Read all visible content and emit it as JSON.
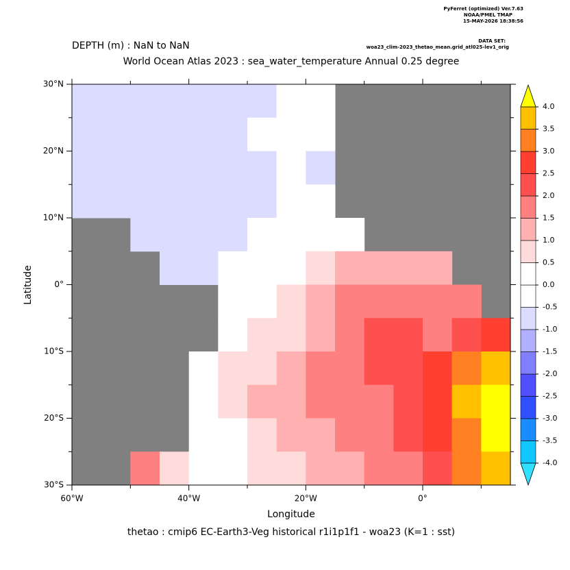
{
  "header": {
    "software": "PyFerret (optimized) Ver.7.63",
    "lab": "NOAA/PMEL TMAP",
    "timestamp": "15-MAY-2026 18:38:56",
    "dataset_label": "DATA SET:",
    "dataset": "woa23_clim-2023_thetao_mean.grid_atl025-lev1_orig"
  },
  "chart_data": {
    "type": "heatmap",
    "depth": "DEPTH (m) : NaN to NaN",
    "title": "World Ocean Atlas 2023 : sea_water_temperature Annual  0.25 degree",
    "xlabel": "Longitude",
    "ylabel": "Latitude",
    "footer": "thetao : cmip6 EC-Earth3-Veg historical r1i1p1f1 - woa23  (K=1 : sst)",
    "xlim": [
      -60,
      15
    ],
    "ylim": [
      -30,
      30
    ],
    "xticks": [
      {
        "value": -60,
        "label": "60°W"
      },
      {
        "value": -40,
        "label": "40°W"
      },
      {
        "value": -20,
        "label": "20°W"
      },
      {
        "value": 0,
        "label": "0°"
      }
    ],
    "xminorticks": [
      -50,
      -30,
      -10,
      10
    ],
    "yticks": [
      {
        "value": 30,
        "label": "30°N"
      },
      {
        "value": 20,
        "label": "20°N"
      },
      {
        "value": 10,
        "label": "10°N"
      },
      {
        "value": 0,
        "label": "0°"
      },
      {
        "value": -10,
        "label": "10°S"
      },
      {
        "value": -20,
        "label": "20°S"
      },
      {
        "value": -30,
        "label": "30°S"
      }
    ],
    "yminorticks": [
      25,
      15,
      5,
      -5,
      -15,
      -25
    ],
    "x_edges": [
      -60,
      -55,
      -50,
      -45,
      -40,
      -35,
      -30,
      -25,
      -20,
      -15,
      -10,
      -5,
      0,
      5,
      10,
      15
    ],
    "y_edges": [
      30,
      25,
      20,
      15,
      10,
      5,
      0,
      -5,
      -10,
      -15,
      -20,
      -25,
      -30
    ],
    "z": [
      [
        -0.6,
        -0.6,
        -0.6,
        -0.6,
        -0.7,
        -0.6,
        -0.6,
        -0.4,
        -0.2,
        null,
        null,
        null,
        null,
        null,
        null
      ],
      [
        -0.6,
        -0.6,
        -0.6,
        -0.6,
        -0.6,
        -0.6,
        -0.5,
        -0.4,
        -0.2,
        null,
        null,
        null,
        null,
        null,
        null
      ],
      [
        -0.6,
        -0.6,
        -0.7,
        -0.8,
        -0.8,
        -0.7,
        -0.6,
        -0.5,
        -0.9,
        null,
        null,
        null,
        null,
        null,
        null
      ],
      [
        -0.6,
        -0.6,
        -0.6,
        -0.7,
        -0.7,
        -0.6,
        -0.6,
        -0.5,
        -0.3,
        null,
        null,
        null,
        null,
        null,
        null
      ],
      [
        null,
        null,
        -0.6,
        -0.6,
        -0.6,
        -0.6,
        -0.4,
        -0.2,
        0.1,
        0.3,
        null,
        null,
        null,
        null,
        null
      ],
      [
        null,
        null,
        null,
        -0.6,
        -0.6,
        -0.4,
        -0.1,
        0.4,
        0.8,
        1.1,
        1.2,
        1.1,
        1.0,
        null,
        null
      ],
      [
        null,
        null,
        null,
        null,
        null,
        0.1,
        0.4,
        0.8,
        1.2,
        1.6,
        1.7,
        1.7,
        1.6,
        1.6,
        null
      ],
      [
        null,
        null,
        null,
        null,
        null,
        0.3,
        0.6,
        0.9,
        1.3,
        1.7,
        2.0,
        2.0,
        1.9,
        2.0,
        2.5
      ],
      [
        null,
        null,
        null,
        null,
        0.2,
        0.6,
        0.9,
        1.2,
        1.6,
        1.8,
        2.1,
        2.4,
        2.7,
        3.1,
        3.9
      ],
      [
        null,
        null,
        null,
        null,
        0.3,
        0.7,
        1.0,
        1.3,
        1.5,
        1.6,
        1.8,
        2.2,
        2.8,
        3.6,
        4.2
      ],
      [
        null,
        null,
        null,
        null,
        0.3,
        0.4,
        0.6,
        1.0,
        1.3,
        1.5,
        1.7,
        2.0,
        2.6,
        3.2,
        4.1
      ],
      [
        null,
        null,
        1.8,
        0.6,
        0.3,
        0.4,
        0.6,
        0.9,
        1.2,
        1.4,
        1.6,
        1.9,
        2.3,
        3.0,
        3.8
      ]
    ],
    "land_color": "#808080",
    "levels": [
      {
        "value": -4,
        "label": "-4.0"
      },
      -3.5,
      {
        "value": -3,
        "label": "-3.0"
      },
      -2.5,
      {
        "value": -2,
        "label": "-2.0"
      },
      -1.5,
      {
        "value": -1,
        "label": "-1.0"
      },
      -0.5,
      {
        "value": 0,
        "label": "0.0"
      },
      0.5,
      {
        "value": 1,
        "label": "1.0"
      },
      1.5,
      {
        "value": 2,
        "label": "2.0"
      },
      2.5,
      {
        "value": 3,
        "label": "3.0"
      },
      3.5,
      {
        "value": 4,
        "label": "4.0"
      }
    ],
    "colors": [
      "#30e0ff",
      "#10c8ff",
      "#1a8cff",
      "#3050ff",
      "#5050ff",
      "#8080ff",
      "#b0b0ff",
      "#dcdcff",
      "#ffffff",
      "#ffffff",
      "#ffdcdc",
      "#ffb0b0",
      "#ff8080",
      "#ff5050",
      "#ff4030",
      "#ff8020",
      "#ffc000",
      "#ffff00"
    ]
  }
}
